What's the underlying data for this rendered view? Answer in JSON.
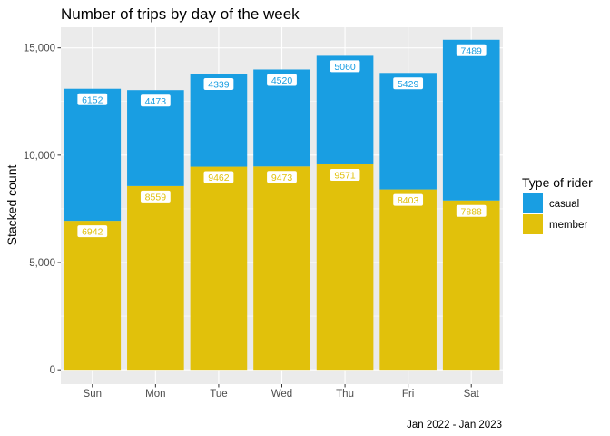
{
  "chart_data": {
    "type": "bar",
    "stacked": true,
    "title": "Number of trips by day of the week",
    "xlabel": "",
    "ylabel": "Stacked count",
    "caption": "Jan 2022 - Jan 2023",
    "categories": [
      "Sun",
      "Mon",
      "Tue",
      "Wed",
      "Thu",
      "Fri",
      "Sat"
    ],
    "series": [
      {
        "name": "member",
        "color": "#e1c10b",
        "values": [
          6942,
          8559,
          9462,
          9473,
          9571,
          8403,
          7888
        ]
      },
      {
        "name": "casual",
        "color": "#199ee2",
        "values": [
          6152,
          4473,
          4339,
          4520,
          5060,
          5429,
          7489
        ]
      }
    ],
    "yticks": [
      0,
      5000,
      10000,
      15000
    ],
    "ytick_labels": [
      "0",
      "5,000",
      "10,000",
      "15,000"
    ],
    "ylim": [
      -670,
      15960
    ],
    "grid": true,
    "legend": {
      "title": "Type of rider",
      "position": "right",
      "entries": [
        {
          "label": "casual",
          "color": "#199ee2"
        },
        {
          "label": "member",
          "color": "#e1c10b"
        }
      ]
    }
  }
}
